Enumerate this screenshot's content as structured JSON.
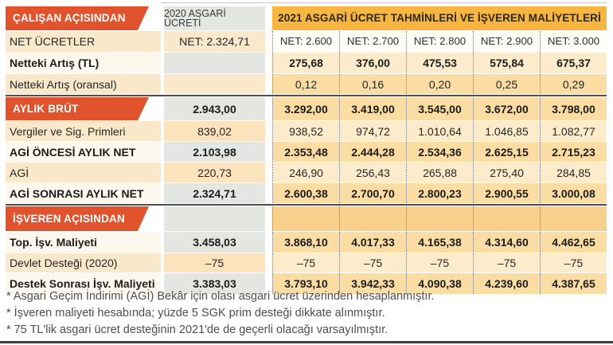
{
  "table": {
    "section_employee": "ÇALIŞAN AÇISINDAN",
    "section_aylik_brut": "AYLIK BRÜT",
    "section_employer": "İŞVEREN AÇISINDAN",
    "col2020_header": "2020 ASGARİ ÜCRETİ",
    "col2021_header": "2021 ASGARİ ÜCRET TAHMİNLERİ VE İŞVEREN MALİYETLERİ",
    "rows": [
      {
        "label": "NET ÜCRETLER",
        "v2020": "NET: 2.324,71",
        "v2021": [
          "NET: 2.600",
          "NET: 2.700",
          "NET: 2.800",
          "NET: 2.900",
          "NET: 3.000"
        ]
      },
      {
        "label": "Netteki Artış (TL)",
        "v2020": "",
        "v2021": [
          "275,68",
          "376,00",
          "475,53",
          "575,84",
          "675,37"
        ]
      },
      {
        "label": "Netteki Artış (oransal)",
        "v2020": "",
        "v2021": [
          "0,12",
          "0,16",
          "0,20",
          "0,25",
          "0,29"
        ]
      },
      {
        "label": "AYLIK BRÜT",
        "v2020": "2.943,00",
        "v2021": [
          "3.292,00",
          "3.419,00",
          "3.545,00",
          "3.672,00",
          "3.798,00"
        ]
      },
      {
        "label": "Vergiler ve Sig. Primleri",
        "v2020": "839,02",
        "v2021": [
          "938,52",
          "974,72",
          "1.010,64",
          "1.046,85",
          "1.082,77"
        ]
      },
      {
        "label": "AGİ ÖNCESİ AYLIK NET",
        "v2020": "2.103,98",
        "v2021": [
          "2.353,48",
          "2.444,28",
          "2.534,36",
          "2.625,15",
          "2.715,23"
        ]
      },
      {
        "label": "AGİ",
        "v2020": "220,73",
        "v2021": [
          "246,90",
          "256,43",
          "265,88",
          "275,40",
          "284,85"
        ]
      },
      {
        "label": "AGİ SONRASI AYLIK NET",
        "v2020": "2.324,71",
        "v2021": [
          "2.600,38",
          "2.700,70",
          "2.800,23",
          "2.900,55",
          "3.000,08"
        ]
      },
      {
        "label": "İŞVEREN AÇISINDAN",
        "v2020": "",
        "v2021": [
          "",
          "",
          "",
          "",
          ""
        ]
      },
      {
        "label": "Top. İşv. Maliyeti",
        "v2020": "3.458,03",
        "v2021": [
          "3.868,10",
          "4.017,33",
          "4.165,38",
          "4.314,60",
          "4.462,65"
        ]
      },
      {
        "label": "Devlet Desteği (2020)",
        "v2020": "–75",
        "v2021": [
          "–75",
          "–75",
          "–75",
          "–75",
          "–75"
        ]
      },
      {
        "label": "Destek Sonrası İşv. Maliyeti",
        "v2020": "3.383,03",
        "v2021": [
          "3.793,10",
          "3.942,33",
          "4.090,38",
          "4.239,60",
          "4.387,65"
        ]
      }
    ],
    "footnotes": [
      "* Asgari Geçim İndirimi (AGİ) Bekâr için olası asgari ücret üzerinden hesaplanmıştır.",
      "* İşveren maliyeti hesabında; yüzde 5 SGK prim desteği dikkate alınmıştır.",
      "* 75 TL'lik asgari ücret desteğinin 2021'de de geçerli olacağı varsayılmıştır."
    ],
    "colors": {
      "banner_orange": "#e1532c",
      "header_2021_amber": "#f8b640",
      "row_orange": "#fbdca3",
      "row_pale": "#fdeccb",
      "row_cream": "#fae8cb",
      "col2020_gray": "#e4e6e2"
    }
  },
  "chart_data": {
    "type": "table",
    "title": "2021 ASGARİ ÜCRET TAHMİNLERİ VE İŞVEREN MALİYETLERİ",
    "column_headers": [
      "ÇALIŞAN AÇISINDAN",
      "2020 ASGARİ ÜCRETİ",
      "NET: 2.600",
      "NET: 2.700",
      "NET: 2.800",
      "NET: 2.900",
      "NET: 3.000"
    ],
    "rows": [
      [
        "NET ÜCRETLER",
        "NET: 2.324,71",
        "NET: 2.600",
        "NET: 2.700",
        "NET: 2.800",
        "NET: 2.900",
        "NET: 3.000"
      ],
      [
        "Netteki Artış (TL)",
        null,
        275.68,
        376.0,
        475.53,
        575.84,
        675.37
      ],
      [
        "Netteki Artış (oransal)",
        null,
        0.12,
        0.16,
        0.2,
        0.25,
        0.29
      ],
      [
        "AYLIK BRÜT",
        2943.0,
        3292.0,
        3419.0,
        3545.0,
        3672.0,
        3798.0
      ],
      [
        "Vergiler ve Sig. Primleri",
        839.02,
        938.52,
        974.72,
        1010.64,
        1046.85,
        1082.77
      ],
      [
        "AGİ ÖNCESİ AYLIK NET",
        2103.98,
        2353.48,
        2444.28,
        2534.36,
        2625.15,
        2715.23
      ],
      [
        "AGİ",
        220.73,
        246.9,
        256.43,
        265.88,
        275.4,
        284.85
      ],
      [
        "AGİ SONRASI AYLIK NET",
        2324.71,
        2600.38,
        2700.7,
        2800.23,
        2900.55,
        3000.08
      ],
      [
        "Top. İşv. Maliyeti",
        3458.03,
        3868.1,
        4017.33,
        4165.38,
        4314.6,
        4462.65
      ],
      [
        "Devlet Desteği (2020)",
        -75,
        -75,
        -75,
        -75,
        -75,
        -75
      ],
      [
        "Destek Sonrası İşv. Maliyeti",
        3383.03,
        3793.1,
        3942.33,
        4090.38,
        4239.6,
        4387.65
      ]
    ],
    "footnotes": [
      "Asgari Geçim İndirimi (AGİ) Bekâr için olası asgari ücret üzerinden hesaplanmıştır.",
      "İşveren maliyeti hesabında; yüzde 5 SGK prim desteği dikkate alınmıştır.",
      "75 TL'lik asgari ücret desteğinin 2021'de de geçerli olacağı varsayılmıştır."
    ]
  }
}
